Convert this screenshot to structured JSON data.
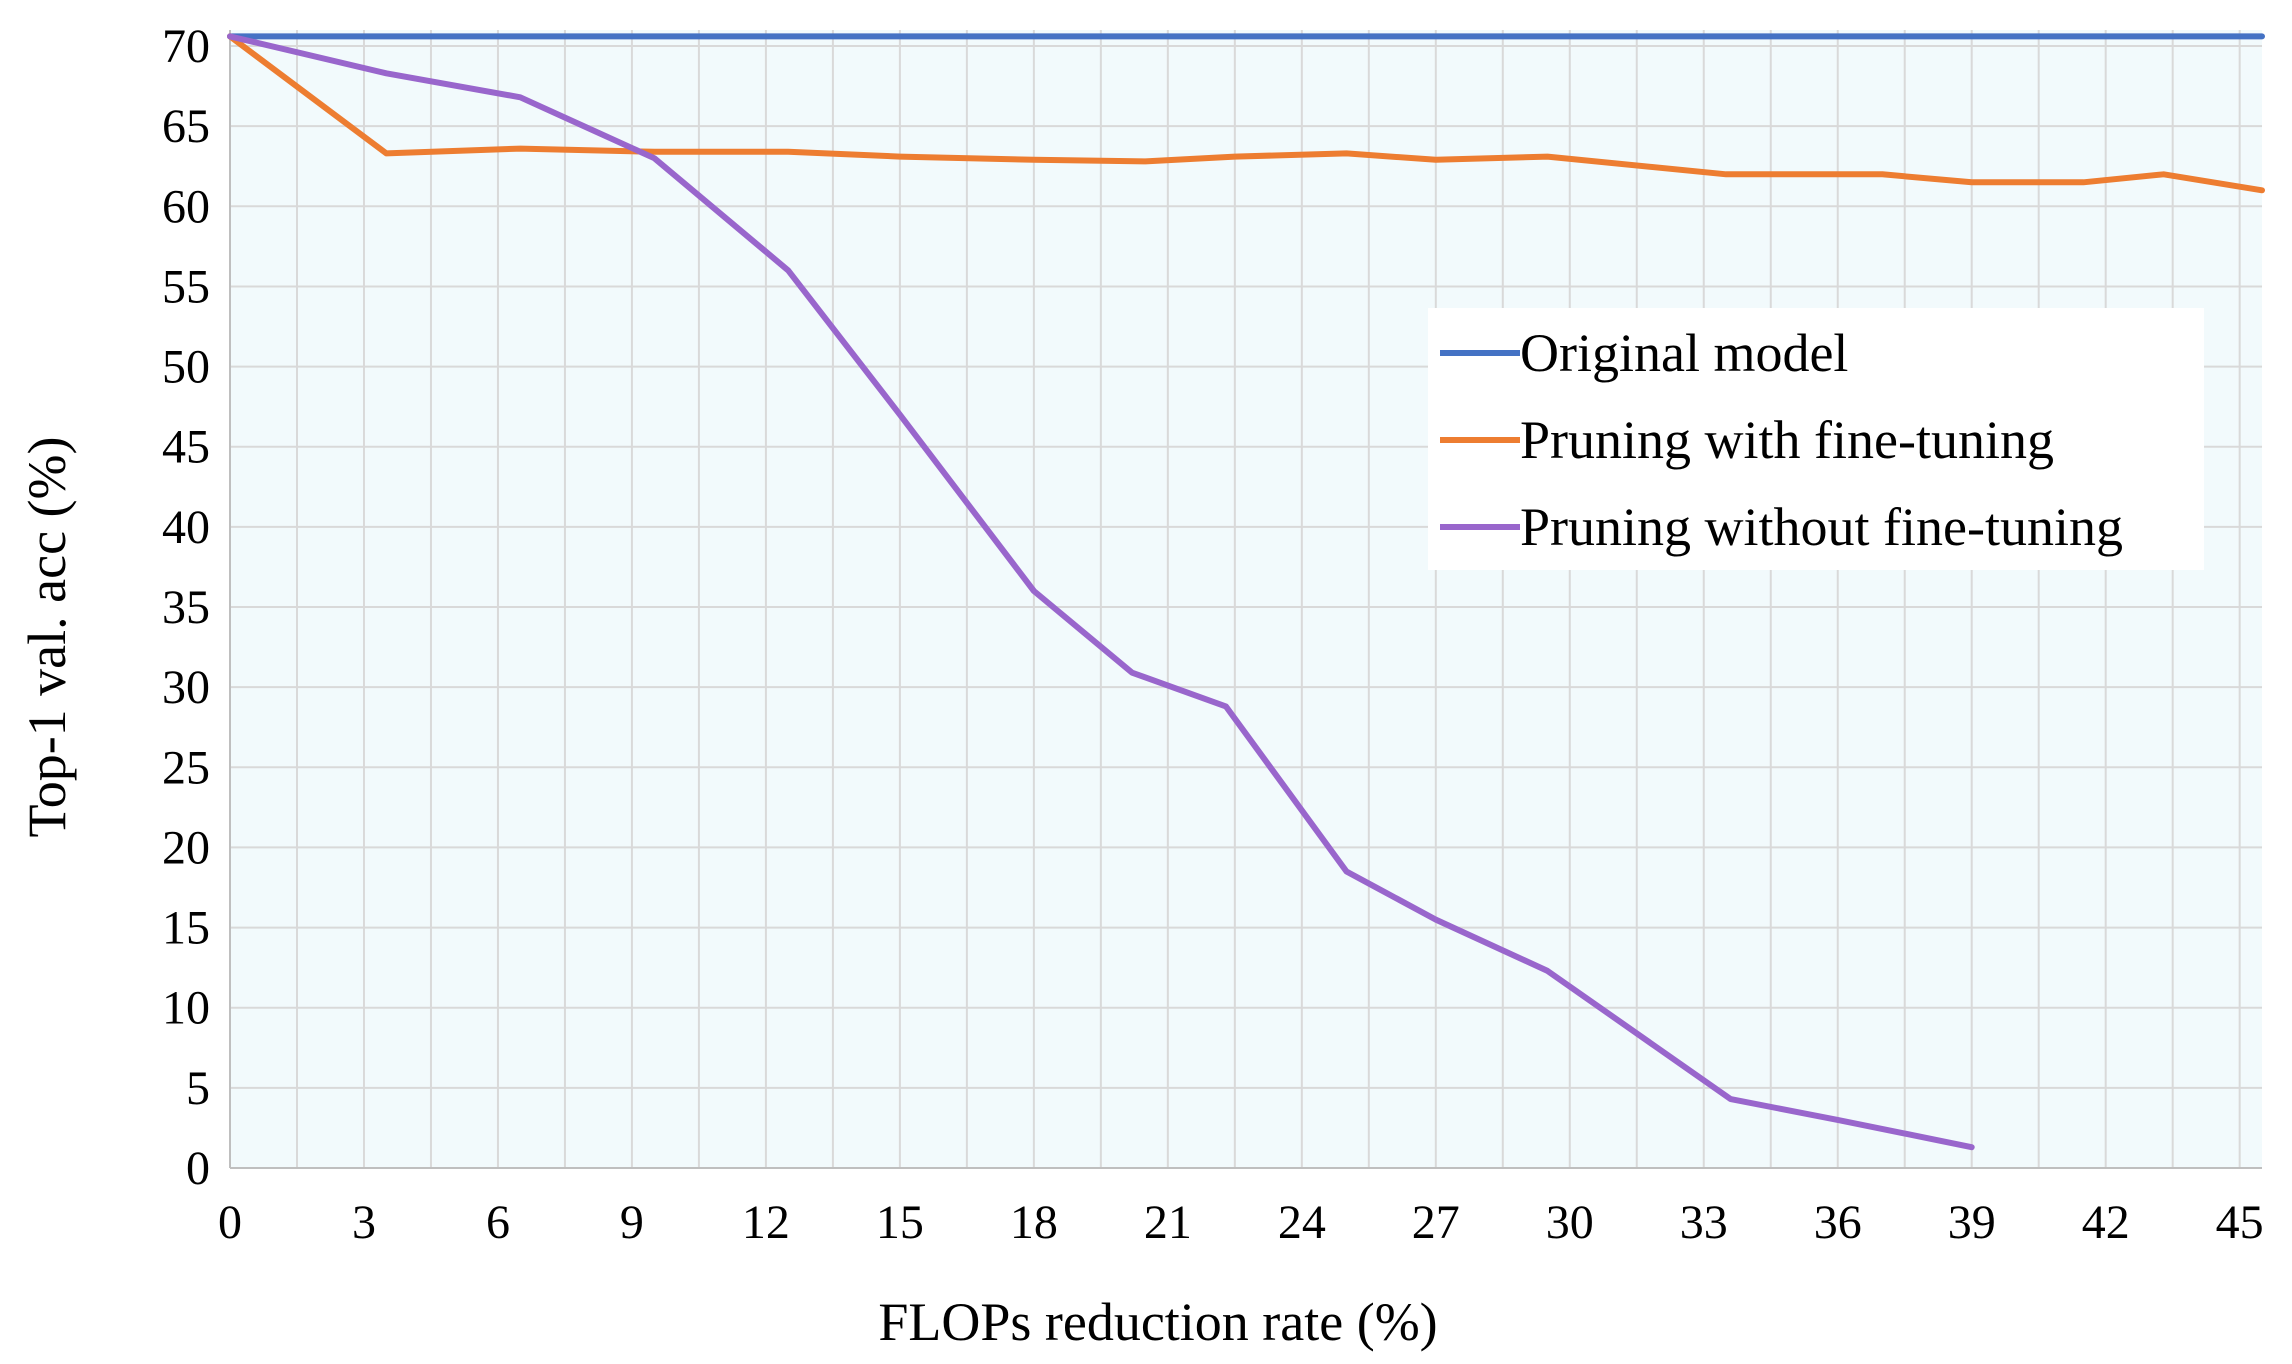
{
  "chart_data": {
    "type": "line",
    "title": "",
    "xlabel": "FLOPs reduction rate (%)",
    "ylabel": "Top-1 val. acc (%)",
    "xlim": [
      0,
      45.5
    ],
    "ylim": [
      0,
      71
    ],
    "x_ticks": [
      "0",
      "3",
      "6",
      "9",
      "12",
      "15",
      "18",
      "21",
      "24",
      "27",
      "30",
      "33",
      "36",
      "39",
      "42",
      "45"
    ],
    "y_ticks": [
      "0",
      "5",
      "10",
      "15",
      "20",
      "25",
      "30",
      "35",
      "40",
      "45",
      "50",
      "55",
      "60",
      "65",
      "70"
    ],
    "grid": true,
    "plot_background": "#f2fafc",
    "legend_position": "right",
    "series": [
      {
        "name": "Original model",
        "color": "#4472c4",
        "points": [
          [
            0,
            70.6
          ],
          [
            45.5,
            70.6
          ]
        ]
      },
      {
        "name": "Pruning with fine-tuning",
        "color": "#ed7d31",
        "points": [
          [
            0,
            70.6
          ],
          [
            3.5,
            63.3
          ],
          [
            6.5,
            63.6
          ],
          [
            9.5,
            63.4
          ],
          [
            12.5,
            63.4
          ],
          [
            15,
            63.1
          ],
          [
            18,
            62.9
          ],
          [
            20.5,
            62.8
          ],
          [
            22.5,
            63.1
          ],
          [
            25,
            63.3
          ],
          [
            27,
            62.9
          ],
          [
            29.5,
            63.1
          ],
          [
            33.5,
            62.0
          ],
          [
            37,
            62.0
          ],
          [
            39,
            61.5
          ],
          [
            41.5,
            61.5
          ],
          [
            43.3,
            62.0
          ],
          [
            45.5,
            61.0
          ]
        ]
      },
      {
        "name": "Pruning without fine-tuning",
        "color": "#9966cc",
        "points": [
          [
            0,
            70.6
          ],
          [
            3.5,
            68.3
          ],
          [
            6.5,
            66.8
          ],
          [
            9.5,
            63.0
          ],
          [
            12.5,
            56.0
          ],
          [
            15,
            47.0
          ],
          [
            18,
            36.0
          ],
          [
            20.2,
            30.9
          ],
          [
            22.3,
            28.8
          ],
          [
            25,
            18.5
          ],
          [
            27,
            15.5
          ],
          [
            29.5,
            12.3
          ],
          [
            33.6,
            4.3
          ],
          [
            36,
            3.0
          ],
          [
            39,
            1.3
          ]
        ]
      }
    ]
  }
}
